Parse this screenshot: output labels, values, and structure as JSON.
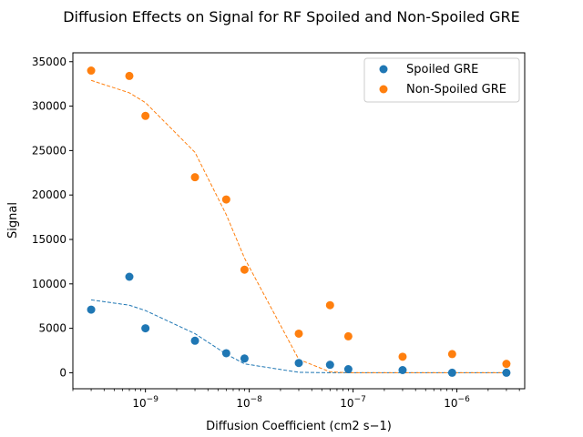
{
  "chart_data": {
    "type": "scatter",
    "title": "Diffusion Effects on Signal for RF Spoiled and Non-Spoiled GRE",
    "xlabel": "Diffusion Coefficient (cm2 s−1)",
    "ylabel": "Signal",
    "xscale": "log",
    "xlim": [
      2e-10,
      4.5e-06
    ],
    "ylim": [
      -1800,
      36000
    ],
    "x_ticks": [
      {
        "value": 1e-09,
        "base": "10",
        "exp": "−9"
      },
      {
        "value": 1e-08,
        "base": "10",
        "exp": "−8"
      },
      {
        "value": 1e-07,
        "base": "10",
        "exp": "−7"
      },
      {
        "value": 1e-06,
        "base": "10",
        "exp": "−6"
      }
    ],
    "y_ticks": [
      {
        "value": 0,
        "label": "0"
      },
      {
        "value": 5000,
        "label": "5000"
      },
      {
        "value": 10000,
        "label": "10000"
      },
      {
        "value": 15000,
        "label": "15000"
      },
      {
        "value": 20000,
        "label": "20000"
      },
      {
        "value": 25000,
        "label": "25000"
      },
      {
        "value": 30000,
        "label": "30000"
      },
      {
        "value": 35000,
        "label": "35000"
      }
    ],
    "legend_position": "top-right",
    "series": [
      {
        "name": "Spoiled GRE",
        "color": "#1f77b4",
        "x": [
          3e-10,
          7e-10,
          1e-09,
          3e-09,
          6e-09,
          9e-09,
          3e-08,
          6e-08,
          9e-08,
          3e-07,
          9e-07,
          3e-06
        ],
        "values": [
          7100,
          10800,
          5000,
          3600,
          2200,
          1600,
          1100,
          900,
          400,
          300,
          0,
          0
        ],
        "fit_values": [
          8200,
          7600,
          7000,
          4400,
          2100,
          1000,
          50,
          0,
          0,
          0,
          0,
          0
        ]
      },
      {
        "name": "Non-Spoiled GRE",
        "color": "#ff7f0e",
        "x": [
          3e-10,
          7e-10,
          1e-09,
          3e-09,
          6e-09,
          9e-09,
          3e-08,
          6e-08,
          9e-08,
          3e-07,
          9e-07,
          3e-06
        ],
        "values": [
          34000,
          33400,
          28900,
          22000,
          19500,
          11600,
          4400,
          7600,
          4100,
          1800,
          2100,
          1000
        ],
        "fit_values": [
          32900,
          31500,
          30400,
          24800,
          17800,
          12900,
          1500,
          100,
          0,
          0,
          0,
          0
        ]
      }
    ]
  }
}
